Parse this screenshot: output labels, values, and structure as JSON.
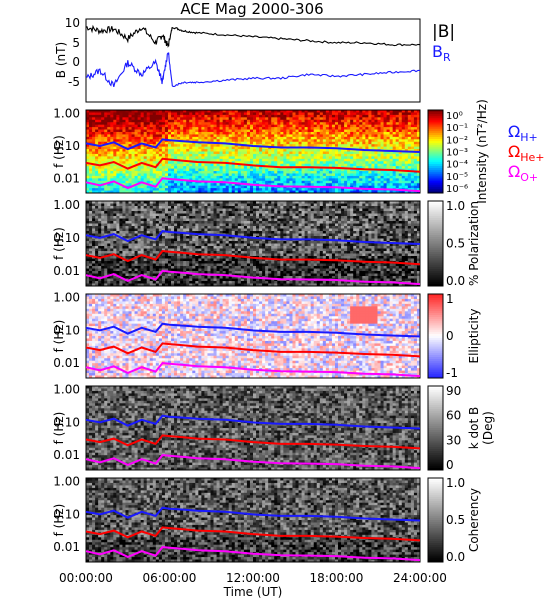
{
  "title": "ACE Mag 2000-306",
  "xaxis": {
    "label": "Time (UT)",
    "ticks": [
      "00:00:00",
      "06:00:00",
      "12:00:00",
      "18:00:00",
      "24:00:00"
    ]
  },
  "colors": {
    "absB": "#000000",
    "BR": "#1a1aff",
    "OmegaH": "#1a1aff",
    "OmegaHe": "#ff0000",
    "OmegaO": "#ff00ff"
  },
  "chart_data": [
    {
      "type": "line",
      "title": "ACE Mag 2000-306",
      "ylabel": "B (nT)",
      "ylim": [
        -10,
        11
      ],
      "yticks": [
        "10",
        "5",
        "0",
        "-5"
      ],
      "legend": [
        "|B|",
        "B_R"
      ],
      "legend_text": {
        "absB": "|B|",
        "BR_main": "B",
        "BR_sub": "R"
      },
      "xlim_hours": [
        0,
        24
      ],
      "series": [
        {
          "name": "|B|",
          "x": [
            0,
            1,
            2,
            3,
            4,
            5,
            5.5,
            5.9,
            6.2,
            7,
            8,
            10,
            12,
            14,
            16,
            18,
            20,
            22,
            24
          ],
          "y": [
            9,
            8,
            8.5,
            6,
            9,
            5,
            7,
            4,
            9,
            8,
            7.5,
            7,
            6.5,
            6,
            5.5,
            5,
            5,
            4.5,
            4.5
          ]
        },
        {
          "name": "B_R",
          "x": [
            0,
            1,
            2,
            3,
            4,
            5,
            5.5,
            5.9,
            6.2,
            7,
            8,
            10,
            12,
            14,
            16,
            18,
            20,
            22,
            24
          ],
          "y": [
            -4,
            -2,
            -6,
            0,
            -3,
            0,
            -5,
            3,
            -6,
            -5,
            -5,
            -4.5,
            -4,
            -4,
            -3,
            -3.5,
            -3,
            -2.5,
            -2
          ]
        }
      ]
    },
    {
      "type": "heatmap",
      "ylabel": "f (Hz)",
      "yticks": [
        "1.00",
        "0.10",
        "0.01"
      ],
      "colorbar": {
        "label": "Intensity (nT²/Hz)",
        "ticks": [
          "10⁰",
          "10⁻¹",
          "10⁻²",
          "10⁻³",
          "10⁻⁴",
          "10⁻⁵",
          "10⁻⁶"
        ]
      },
      "legend": [
        "ΩH+",
        "ΩHe+",
        "ΩO+"
      ],
      "legend_parts": [
        {
          "main": "Ω",
          "sub": "H+"
        },
        {
          "main": "Ω",
          "sub": "He+"
        },
        {
          "main": "Ω",
          "sub": "O+"
        }
      ]
    },
    {
      "type": "heatmap",
      "ylabel": "f (Hz)",
      "yticks": [
        "1.00",
        "0.10",
        "0.01"
      ],
      "colorbar": {
        "label": "% Polarization",
        "ticks": [
          "1.0",
          "0.5",
          "0.0"
        ]
      }
    },
    {
      "type": "heatmap",
      "ylabel": "f (Hz)",
      "yticks": [
        "1.00",
        "0.10",
        "0.01"
      ],
      "colorbar": {
        "label": "Ellipticity",
        "ticks": [
          "1",
          "0",
          "-1"
        ]
      }
    },
    {
      "type": "heatmap",
      "ylabel": "f (Hz)",
      "yticks": [
        "1.00",
        "0.10",
        "0.01"
      ],
      "colorbar": {
        "label1": "k dot B",
        "label2": "(Deg)",
        "ticks": [
          "90",
          "60",
          "30",
          "0"
        ]
      }
    },
    {
      "type": "heatmap",
      "ylabel": "f (Hz)",
      "yticks": [
        "1.00",
        "0.10",
        "0.01"
      ],
      "colorbar": {
        "label": "Coherency",
        "ticks": [
          "1.0",
          "0.5",
          "0.0"
        ]
      }
    }
  ],
  "cyclotron_lines": {
    "x_hours": [
      0,
      1,
      2,
      3,
      4,
      5,
      5.5,
      6,
      7,
      8,
      10,
      12,
      14,
      16,
      18,
      20,
      22,
      24
    ],
    "H_plus_hz": [
      0.12,
      0.1,
      0.13,
      0.08,
      0.12,
      0.09,
      0.16,
      0.15,
      0.14,
      0.13,
      0.12,
      0.1,
      0.09,
      0.09,
      0.085,
      0.075,
      0.07,
      0.065
    ],
    "He_plus_hz": [
      0.03,
      0.025,
      0.032,
      0.02,
      0.03,
      0.022,
      0.04,
      0.038,
      0.035,
      0.032,
      0.03,
      0.025,
      0.022,
      0.022,
      0.021,
      0.019,
      0.018,
      0.016
    ],
    "O_plus_hz": [
      0.0075,
      0.006,
      0.008,
      0.005,
      0.0075,
      0.0055,
      0.01,
      0.0095,
      0.0088,
      0.008,
      0.0075,
      0.0063,
      0.0056,
      0.0055,
      0.0053,
      0.0047,
      0.0045,
      0.004
    ]
  }
}
